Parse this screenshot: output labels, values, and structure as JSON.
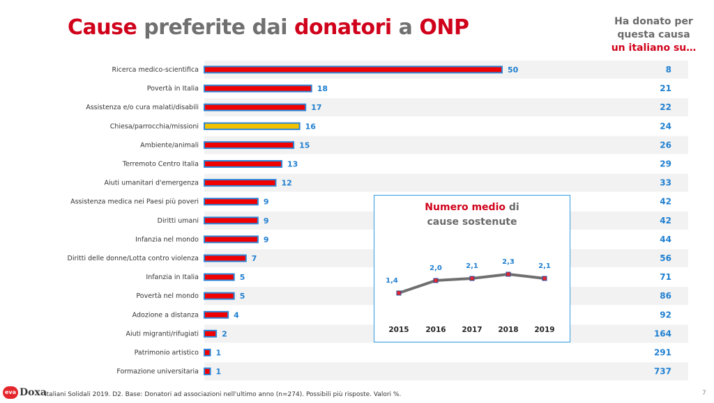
{
  "header": {
    "title_parts": [
      "Cause",
      "preferite dai",
      "donatori",
      "a",
      "ONP"
    ],
    "side_lines": [
      "Ha donato per",
      "questa causa",
      "un italiano su…"
    ]
  },
  "chart_data": [
    {
      "type": "bar",
      "orientation": "horizontal",
      "categories": [
        "Ricerca medico-scientifica",
        "Povertà in Italia",
        "Assistenza e/o cura malati/disabili",
        "Chiesa/parrocchia/missioni",
        "Ambiente/animali",
        "Terremoto Centro Italia",
        "Aiuti umanitari d'emergenza",
        "Assistenza medica nei Paesi più poveri",
        "Diritti umani",
        "Infanzia nel mondo",
        "Diritti delle donne/Lotta contro violenza",
        "Infanzia in Italia",
        "Povertà nel mondo",
        "Adozione a distanza",
        "Aiuti migranti/rifugiati",
        "Patrimonio artistico",
        "Formazione universitaria"
      ],
      "values": [
        50,
        18,
        17,
        16,
        15,
        13,
        12,
        9,
        9,
        9,
        7,
        5,
        5,
        4,
        2,
        1,
        1
      ],
      "highlight_index": 3,
      "colors": {
        "bar": "#f00000",
        "highlight": "#f2c200",
        "outline": "#2e86d8",
        "label": "#1f7fd0"
      },
      "side_values": [
        "8",
        "21",
        "22",
        "24",
        "26",
        "29",
        "33",
        "42",
        "42",
        "44",
        "56",
        "71",
        "86",
        "92",
        "164",
        "291",
        "737"
      ],
      "xlim": [
        0,
        50
      ]
    },
    {
      "type": "line",
      "title_parts": [
        "Numero medio",
        "di",
        "cause sostenute"
      ],
      "x": [
        "2015",
        "2016",
        "2017",
        "2018",
        "2019"
      ],
      "y": [
        1.4,
        2.0,
        2.1,
        2.3,
        2.1
      ],
      "value_labels": [
        "1,4",
        "2,0",
        "2,1",
        "2,3",
        "2,1"
      ],
      "colors": {
        "line": "#6f6f6f",
        "marker": "#e4262c",
        "marker_edge": "#2b4b9b",
        "label": "#1f7fd0"
      }
    }
  ],
  "footer": {
    "logo_mark": "eva",
    "logo_text": "Doxa",
    "source": "Italiani Solidali 2019. D2. Base: Donatori ad associazioni nell'ultimo anno (n=274). Possibili più risposte. Valori %.",
    "page": "7"
  }
}
